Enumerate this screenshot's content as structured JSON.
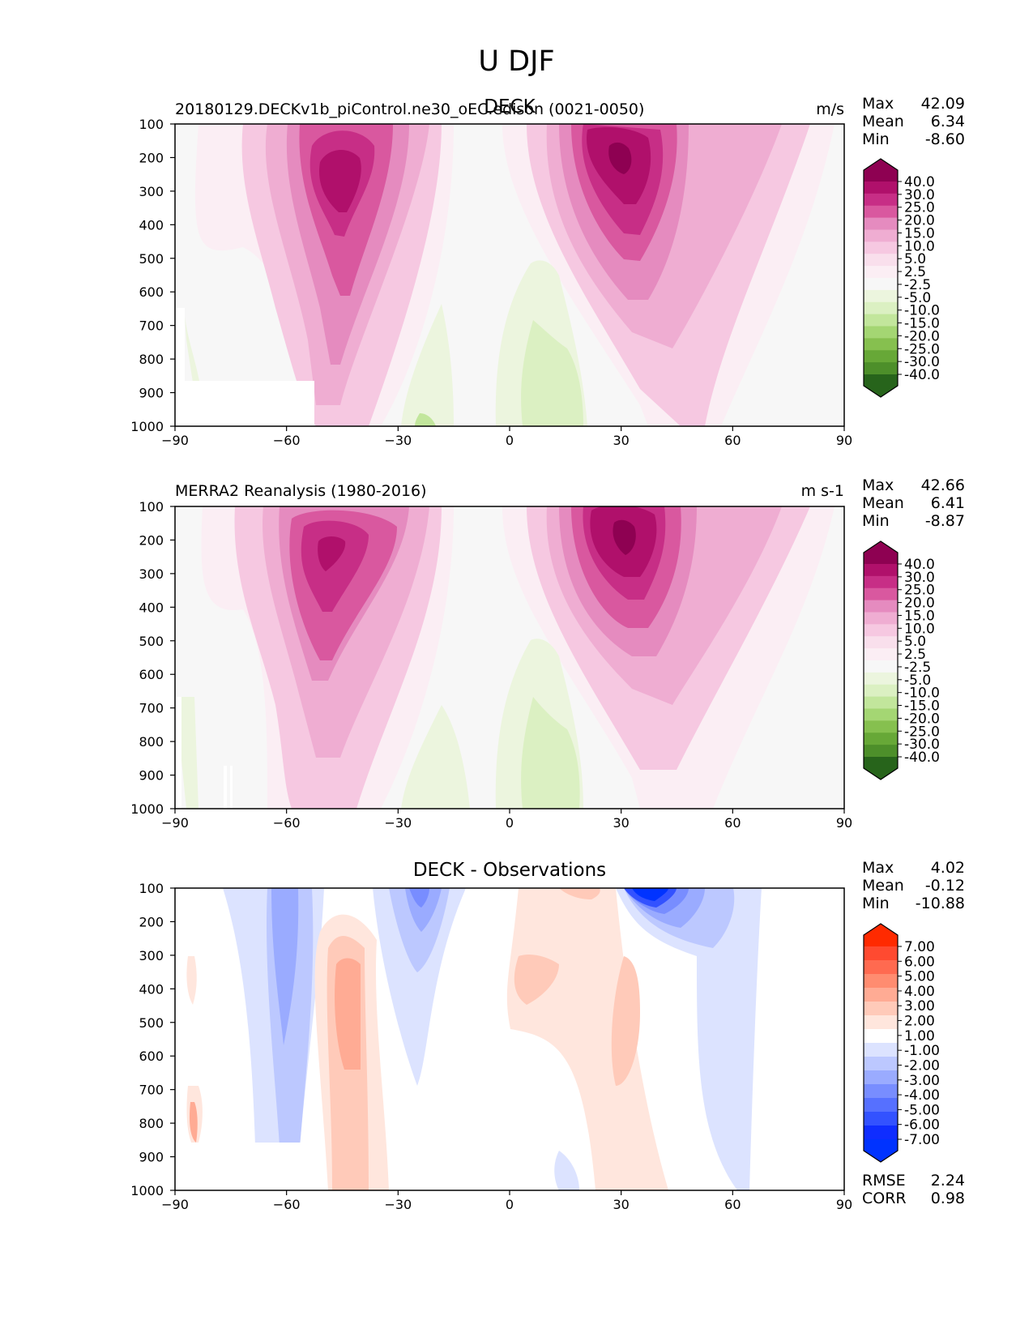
{
  "figure_title": "U DJF",
  "chart_data": [
    {
      "type": "contour",
      "left_title": "20180129.DECKv1b_piControl.ne30_oEC.edison (0021-0050)",
      "center_title": "DECK",
      "units": "m/s",
      "x": [
        -90,
        -60,
        -30,
        0,
        30,
        60,
        90
      ],
      "y": [
        100,
        200,
        300,
        400,
        500,
        600,
        700,
        800,
        900,
        1000
      ],
      "xlim": [
        -90,
        90
      ],
      "ylim": [
        1000,
        100
      ],
      "stats": {
        "max_label": "Max",
        "max": "42.09",
        "mean_label": "Mean",
        "mean": "6.34",
        "min_label": "Min",
        "min": "-8.60"
      },
      "colorbar": {
        "levels": [
          "40.0",
          "30.0",
          "25.0",
          "20.0",
          "15.0",
          "10.0",
          "5.0",
          "2.5",
          "-2.5",
          "-5.0",
          "-10.0",
          "-15.0",
          "-20.0",
          "-25.0",
          "-30.0",
          "-40.0"
        ],
        "colors": [
          "#8e0152",
          "#b0106b",
          "#c72e86",
          "#d9589f",
          "#e58bbf",
          "#efadd2",
          "#f6c8e1",
          "#f9dfec",
          "#fbeef4",
          "#f7f7f7",
          "#ecf5de",
          "#dbf0c2",
          "#c2e69c",
          "#a4d673",
          "#86c04f",
          "#67a837",
          "#4d8f2a",
          "#27641b"
        ]
      }
    },
    {
      "type": "contour",
      "left_title": "MERRA2 Reanalysis (1980-2016)",
      "center_title": "",
      "units": "m s-1",
      "x": [
        -90,
        -60,
        -30,
        0,
        30,
        60,
        90
      ],
      "y": [
        100,
        200,
        300,
        400,
        500,
        600,
        700,
        800,
        900,
        1000
      ],
      "xlim": [
        -90,
        90
      ],
      "ylim": [
        1000,
        100
      ],
      "stats": {
        "max_label": "Max",
        "max": "42.66",
        "mean_label": "Mean",
        "mean": "6.41",
        "min_label": "Min",
        "min": "-8.87"
      },
      "colorbar": {
        "levels": [
          "40.0",
          "30.0",
          "25.0",
          "20.0",
          "15.0",
          "10.0",
          "5.0",
          "2.5",
          "-2.5",
          "-5.0",
          "-10.0",
          "-15.0",
          "-20.0",
          "-25.0",
          "-30.0",
          "-40.0"
        ],
        "colors": [
          "#8e0152",
          "#b0106b",
          "#c72e86",
          "#d9589f",
          "#e58bbf",
          "#efadd2",
          "#f6c8e1",
          "#f9dfec",
          "#fbeef4",
          "#f7f7f7",
          "#ecf5de",
          "#dbf0c2",
          "#c2e69c",
          "#a4d673",
          "#86c04f",
          "#67a837",
          "#4d8f2a",
          "#27641b"
        ]
      }
    },
    {
      "type": "contour",
      "left_title": "",
      "center_title": "DECK - Observations",
      "units": "",
      "x": [
        -90,
        -60,
        -30,
        0,
        30,
        60,
        90
      ],
      "y": [
        100,
        200,
        300,
        400,
        500,
        600,
        700,
        800,
        900,
        1000
      ],
      "xlim": [
        -90,
        90
      ],
      "ylim": [
        1000,
        100
      ],
      "stats": {
        "max_label": "Max",
        "max": "4.02",
        "mean_label": "Mean",
        "mean": "-0.12",
        "min_label": "Min",
        "min": "-10.88"
      },
      "metrics": {
        "rmse_label": "RMSE",
        "rmse": "2.24",
        "corr_label": "CORR",
        "corr": "0.98"
      },
      "colorbar": {
        "levels": [
          "7.00",
          "6.00",
          "5.00",
          "4.00",
          "3.00",
          "2.00",
          "1.00",
          "-1.00",
          "-2.00",
          "-3.00",
          "-4.00",
          "-5.00",
          "-6.00",
          "-7.00"
        ],
        "colors": [
          "#ff2a00",
          "#ff4a30",
          "#ff6a50",
          "#ff8c70",
          "#ffab94",
          "#ffcab9",
          "#ffe6dd",
          "#ffffff",
          "#dce3ff",
          "#bcc8ff",
          "#9aabff",
          "#788dff",
          "#5670ff",
          "#3352ff",
          "#0f2dff",
          "#0033ff"
        ]
      }
    }
  ]
}
